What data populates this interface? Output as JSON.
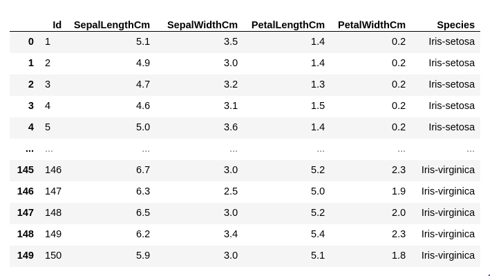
{
  "table": {
    "columns": [
      "",
      "Id",
      "SepalLengthCm",
      "SepalWidthCm",
      "PetalLengthCm",
      "PetalWidthCm",
      "Species"
    ],
    "rows": [
      {
        "index": "0",
        "id": "1",
        "sepal_length": "5.1",
        "sepal_width": "3.5",
        "petal_length": "1.4",
        "petal_width": "0.2",
        "species": "Iris-setosa"
      },
      {
        "index": "1",
        "id": "2",
        "sepal_length": "4.9",
        "sepal_width": "3.0",
        "petal_length": "1.4",
        "petal_width": "0.2",
        "species": "Iris-setosa"
      },
      {
        "index": "2",
        "id": "3",
        "sepal_length": "4.7",
        "sepal_width": "3.2",
        "petal_length": "1.3",
        "petal_width": "0.2",
        "species": "Iris-setosa"
      },
      {
        "index": "3",
        "id": "4",
        "sepal_length": "4.6",
        "sepal_width": "3.1",
        "petal_length": "1.5",
        "petal_width": "0.2",
        "species": "Iris-setosa"
      },
      {
        "index": "4",
        "id": "5",
        "sepal_length": "5.0",
        "sepal_width": "3.6",
        "petal_length": "1.4",
        "petal_width": "0.2",
        "species": "Iris-setosa"
      },
      {
        "index": "...",
        "id": "...",
        "sepal_length": "...",
        "sepal_width": "...",
        "petal_length": "...",
        "petal_width": "...",
        "species": "..."
      },
      {
        "index": "145",
        "id": "146",
        "sepal_length": "6.7",
        "sepal_width": "3.0",
        "petal_length": "5.2",
        "petal_width": "2.3",
        "species": "Iris-virginica"
      },
      {
        "index": "146",
        "id": "147",
        "sepal_length": "6.3",
        "sepal_width": "2.5",
        "petal_length": "5.0",
        "petal_width": "1.9",
        "species": "Iris-virginica"
      },
      {
        "index": "147",
        "id": "148",
        "sepal_length": "6.5",
        "sepal_width": "3.0",
        "petal_length": "5.2",
        "petal_width": "2.0",
        "species": "Iris-virginica"
      },
      {
        "index": "148",
        "id": "149",
        "sepal_length": "6.2",
        "sepal_width": "3.4",
        "petal_length": "5.4",
        "petal_width": "2.3",
        "species": "Iris-virginica"
      },
      {
        "index": "149",
        "id": "150",
        "sepal_length": "5.9",
        "sepal_width": "3.0",
        "petal_length": "5.1",
        "petal_width": "1.8",
        "species": "Iris-virginica"
      }
    ]
  }
}
